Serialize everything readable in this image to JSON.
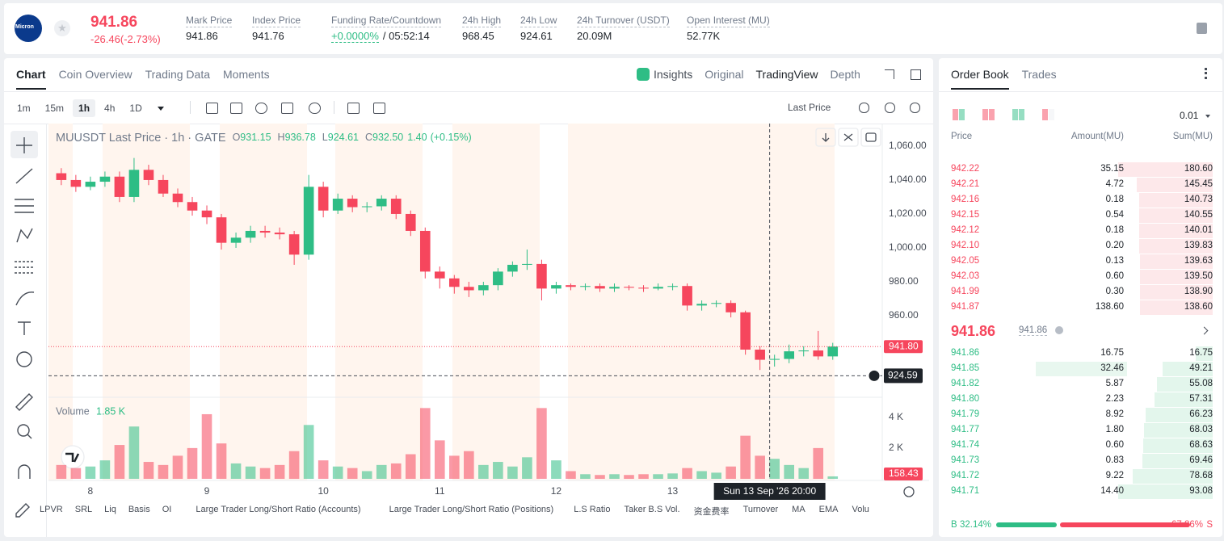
{
  "header": {
    "logo": "Micron",
    "price": "941.86",
    "change": "-26.46(-2.73%)",
    "stats": [
      {
        "label": "Mark Price",
        "value": "941.86"
      },
      {
        "label": "Index Price",
        "value": "941.76"
      },
      {
        "label": "Funding Rate/Countdown",
        "value": "+0.0000%",
        "value2": "/ 05:52:14"
      },
      {
        "label": "24h High",
        "value": "968.45"
      },
      {
        "label": "24h Low",
        "value": "924.61"
      },
      {
        "label": "24h Turnover (USDT)",
        "value": "20.09M"
      },
      {
        "label": "Open Interest (MU)",
        "value": "52.77K"
      }
    ]
  },
  "tabs": [
    "Chart",
    "Coin Overview",
    "Trading Data",
    "Moments"
  ],
  "view_tabs": [
    "Insights",
    "Original",
    "TradingView",
    "Depth"
  ],
  "intervals": [
    "1m",
    "15m",
    "1h",
    "4h",
    "1D"
  ],
  "price_source": "Last Price",
  "indicators": [
    "LPVR",
    "SRL",
    "Liq",
    "Basis",
    "OI",
    "Large Trader Long/Short Ratio (Accounts)",
    "Large Trader Long/Short Ratio (Positions)",
    "L.S Ratio",
    "Taker B.S Vol.",
    "资金费率",
    "Turnover",
    "MA",
    "EMA",
    "Volu"
  ],
  "chart_data": {
    "type": "candlestick",
    "title": "MUUSDT Last Price · 1h · GATE",
    "legend": {
      "keys": [
        "O",
        "H",
        "L",
        "C"
      ],
      "open": 931.15,
      "high": 936.78,
      "low": 924.61,
      "close": {
        "value": 932.5,
        "label": "932.50"
      },
      "change": {
        "value": 1.4,
        "label": "1.40"
      },
      "change_pct": "(+0.15%)"
    },
    "up_color": "#2ebd85",
    "down_color": "#f6465d",
    "x": [
      7.75,
      7.875,
      8,
      8.125,
      8.25,
      8.375,
      8.5,
      8.625,
      8.75,
      8.875,
      9,
      9.125,
      9.25,
      9.375,
      9.5,
      9.625,
      9.75,
      9.875,
      10,
      10.125,
      10.25,
      10.375,
      10.5,
      10.625,
      10.75,
      10.875,
      11,
      11.125,
      11.25,
      11.375,
      11.5,
      11.625,
      11.75,
      11.875,
      12,
      12.125,
      12.25,
      12.375,
      12.5,
      12.625,
      12.75,
      12.875,
      13,
      13.125,
      13.25,
      13.375,
      13.5,
      13.625,
      13.75,
      13.875,
      14,
      14.125,
      14.25,
      14.375
    ],
    "open": [
      1044,
      1040,
      1036,
      1039,
      1042,
      1030,
      1046,
      1040,
      1032,
      1027,
      1022,
      1018,
      1003,
      1006,
      1010,
      1009,
      1008,
      996,
      1036,
      1022,
      1029,
      1024,
      1024.5,
      1029,
      1020,
      1010,
      986,
      982,
      977,
      975,
      978,
      986,
      990,
      990.5,
      976,
      978,
      977,
      977.5,
      976,
      977,
      976.5,
      976,
      977,
      977.5,
      966,
      967,
      967.5,
      962,
      940,
      934,
      934.5,
      939,
      939.5,
      936
    ],
    "high": [
      1047,
      1043,
      1042,
      1045,
      1045,
      1053,
      1049,
      1043,
      1035,
      1030,
      1025,
      1020,
      1009,
      1013,
      1013,
      1012,
      1010,
      1043,
      1039,
      1032,
      1031,
      1027,
      1031,
      1031,
      1022,
      1012,
      989,
      984,
      980,
      980,
      988,
      992,
      999,
      993,
      980,
      979,
      979,
      979,
      979,
      978,
      978,
      979,
      979,
      979,
      969,
      969,
      969,
      963,
      942,
      937,
      943,
      942,
      951,
      944
    ],
    "low": [
      1037,
      1033,
      1034,
      1036,
      1027,
      1027,
      1037,
      1030,
      1024,
      1019,
      1014,
      999,
      1000,
      1003,
      1006,
      1005,
      990,
      993,
      1018,
      1020,
      1021,
      1021,
      1022,
      1017,
      1007,
      982,
      976,
      973,
      971,
      972,
      975,
      983,
      987,
      969,
      973,
      975,
      975,
      974,
      974,
      975,
      974,
      975,
      975,
      963,
      963,
      965,
      959,
      937,
      928,
      930,
      932,
      936,
      934,
      934
    ],
    "close": [
      1040,
      1036,
      1039,
      1042,
      1030,
      1046,
      1040,
      1032,
      1027,
      1022,
      1018,
      1003,
      1006,
      1010,
      1009,
      1008,
      996,
      1036,
      1022,
      1029,
      1024,
      1024.5,
      1029,
      1020,
      1010,
      986,
      982,
      977,
      975,
      978,
      986,
      990,
      990.5,
      976,
      978,
      977,
      977.5,
      976,
      977,
      976.5,
      976,
      977,
      977.5,
      966,
      967,
      967.5,
      962,
      940,
      934,
      934.5,
      939,
      939.5,
      936,
      941.8
    ],
    "volume": [
      900,
      700,
      800,
      1200,
      2200,
      3400,
      1100,
      900,
      1500,
      2000,
      4200,
      2300,
      1000,
      800,
      700,
      900,
      1800,
      3500,
      1200,
      800,
      700,
      500,
      900,
      1000,
      1600,
      4600,
      2500,
      1500,
      1800,
      900,
      1100,
      800,
      1400,
      4600,
      1200,
      500,
      300,
      250,
      300,
      250,
      300,
      300,
      350,
      700,
      500,
      400,
      800,
      2800,
      1500,
      1300,
      900,
      700,
      2000,
      158.43
    ],
    "xlim": [
      7.64,
      14.8
    ],
    "xticks": [
      8,
      9,
      10,
      11,
      12,
      13
    ],
    "ylim": [
      911.9,
      1073.3
    ],
    "yticks": [
      {
        "value": 960,
        "label": "960.00"
      },
      {
        "value": 980,
        "label": "980.00"
      },
      {
        "value": 1000,
        "label": "1,000.00"
      },
      {
        "value": 1020,
        "label": "1,020.00"
      },
      {
        "value": 1040,
        "label": "1,040.00"
      },
      {
        "value": 1060,
        "label": "1,060.00"
      }
    ],
    "last_price": {
      "value": 941.8,
      "label": "941.80"
    },
    "crosshair": {
      "price": {
        "value": 924.59,
        "label": "924.59"
      },
      "x": 13.833,
      "x_label": "Sun 13 Sep '26  20:00"
    },
    "volume_title": "Volume",
    "volume_value": {
      "value": 1850,
      "label": "1.85 K"
    },
    "vlim": [
      0,
      5300
    ],
    "vticks": [
      {
        "value": 2000,
        "label": "2 K"
      },
      {
        "value": 4000,
        "label": "4 K"
      }
    ],
    "volume_last": {
      "value": 158.43,
      "label": "158.43"
    }
  },
  "order_book": {
    "tabs": [
      "Order Book",
      "Trades"
    ],
    "step": "0.01",
    "columns": [
      "Price",
      "Amount(MU)",
      "Sum(MU)"
    ],
    "asks": [
      [
        "942.22",
        "35.15",
        "180.60"
      ],
      [
        "942.21",
        "4.72",
        "145.45"
      ],
      [
        "942.16",
        "0.18",
        "140.73"
      ],
      [
        "942.15",
        "0.54",
        "140.55"
      ],
      [
        "942.12",
        "0.18",
        "140.01"
      ],
      [
        "942.10",
        "0.20",
        "139.83"
      ],
      [
        "942.05",
        "0.13",
        "139.63"
      ],
      [
        "942.03",
        "0.60",
        "139.50"
      ],
      [
        "941.99",
        "0.30",
        "138.90"
      ],
      [
        "941.87",
        "138.60",
        "138.60"
      ]
    ],
    "mid_price": "941.86",
    "mark_price": "941.86",
    "bids": [
      [
        "941.86",
        "16.75",
        "16.75"
      ],
      [
        "941.85",
        "32.46",
        "49.21"
      ],
      [
        "941.82",
        "5.87",
        "55.08"
      ],
      [
        "941.80",
        "2.23",
        "57.31"
      ],
      [
        "941.79",
        "8.92",
        "66.23"
      ],
      [
        "941.77",
        "1.80",
        "68.03"
      ],
      [
        "941.74",
        "0.60",
        "68.63"
      ],
      [
        "941.73",
        "0.83",
        "69.46"
      ],
      [
        "941.72",
        "9.22",
        "78.68"
      ],
      [
        "941.71",
        "14.40",
        "93.08"
      ]
    ],
    "buy_label": "B",
    "buy_pct": "32.14%",
    "sell_pct": "67.86%",
    "sell_label": "S"
  }
}
